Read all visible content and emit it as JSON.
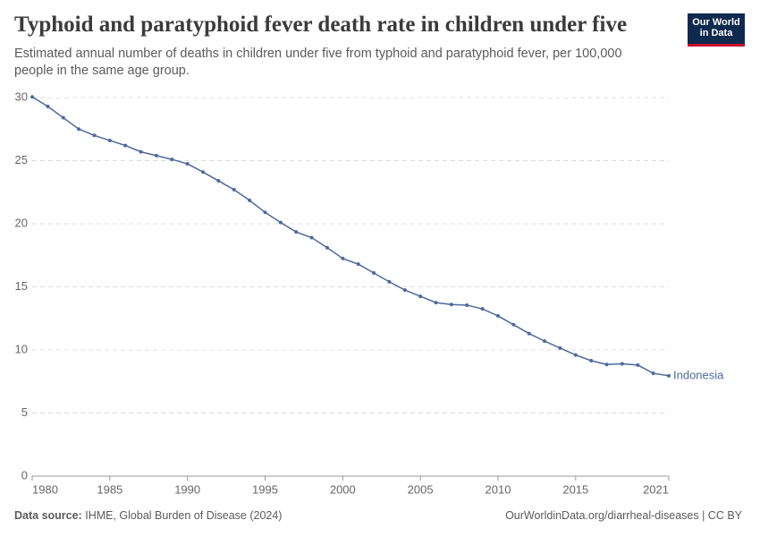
{
  "chart_data": {
    "type": "line",
    "title": "Typhoid and paratyphoid fever death rate in children under five",
    "subtitle": "Estimated annual number of deaths in children under five from typhoid and paratyphoid fever, per 100,000 people in the same age group.",
    "x": [
      1980,
      1981,
      1982,
      1983,
      1984,
      1985,
      1986,
      1987,
      1988,
      1989,
      1990,
      1991,
      1992,
      1993,
      1994,
      1995,
      1996,
      1997,
      1998,
      1999,
      2000,
      2001,
      2002,
      2003,
      2004,
      2005,
      2006,
      2007,
      2008,
      2009,
      2010,
      2011,
      2012,
      2013,
      2014,
      2015,
      2016,
      2017,
      2018,
      2019,
      2020,
      2021
    ],
    "series": [
      {
        "name": "Indonesia",
        "color": "#4c6a9c",
        "values": [
          30.05,
          29.3,
          28.4,
          27.5,
          27.0,
          26.6,
          26.2,
          25.7,
          25.4,
          25.1,
          24.75,
          24.1,
          23.4,
          22.7,
          21.85,
          20.9,
          20.1,
          19.35,
          18.9,
          18.1,
          17.25,
          16.8,
          16.1,
          15.4,
          14.75,
          14.25,
          13.75,
          13.6,
          13.55,
          13.25,
          12.7,
          12.0,
          11.3,
          10.7,
          10.15,
          9.6,
          9.15,
          8.85,
          8.9,
          8.8,
          8.15,
          7.95
        ]
      }
    ],
    "xlim": [
      1980,
      2021
    ],
    "xticks": [
      1980,
      1985,
      1990,
      1995,
      2000,
      2005,
      2010,
      2015,
      2021
    ],
    "ylim": [
      0,
      30
    ],
    "yticks": [
      0,
      5,
      10,
      15,
      20,
      25,
      30
    ],
    "grid": true,
    "source_label": "Data source:",
    "source": "IHME, Global Burden of Disease (2024)",
    "url": "OurWorldinData.org/diarrheal-diseases | CC BY"
  },
  "logo": {
    "lines": [
      "Our World",
      "in Data"
    ]
  }
}
